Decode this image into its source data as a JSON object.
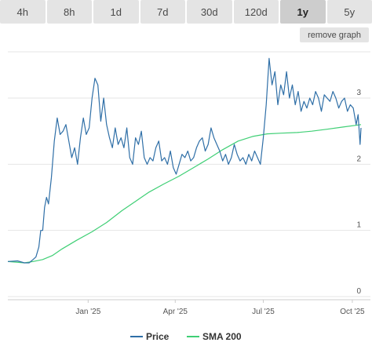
{
  "tabs": [
    {
      "label": "4h",
      "active": false
    },
    {
      "label": "8h",
      "active": false
    },
    {
      "label": "1d",
      "active": false
    },
    {
      "label": "7d",
      "active": false
    },
    {
      "label": "30d",
      "active": false
    },
    {
      "label": "120d",
      "active": false
    },
    {
      "label": "1y",
      "active": true
    },
    {
      "label": "5y",
      "active": false
    }
  ],
  "remove_graph_label": "remove graph",
  "colors": {
    "price": "#2f6fa7",
    "sma": "#3fcf75",
    "grid": "#e6e6e6",
    "axis": "#cccccc"
  },
  "chart_data": {
    "type": "line",
    "x_ticks": [
      "Jan '25",
      "Apr '25",
      "Jul '25",
      "Oct '25"
    ],
    "y_ticks": [
      "0",
      "1",
      "2",
      "3"
    ],
    "ylim": [
      0,
      3.7
    ],
    "xlim": [
      "2024-10-10",
      "2025-10-10"
    ],
    "grid": true,
    "legend_position": "bottom",
    "series": [
      {
        "name": "Price",
        "color": "#2f6fa7",
        "x": [
          "2024-10-10",
          "2024-10-20",
          "2024-10-27",
          "2024-11-01",
          "2024-11-05",
          "2024-11-08",
          "2024-11-11",
          "2024-11-13",
          "2024-11-15",
          "2024-11-17",
          "2024-11-19",
          "2024-11-21",
          "2024-11-24",
          "2024-11-27",
          "2024-11-30",
          "2024-12-03",
          "2024-12-06",
          "2024-12-09",
          "2024-12-12",
          "2024-12-15",
          "2024-12-18",
          "2024-12-21",
          "2024-12-24",
          "2024-12-27",
          "2024-12-30",
          "2025-01-02",
          "2025-01-05",
          "2025-01-08",
          "2025-01-11",
          "2025-01-14",
          "2025-01-17",
          "2025-01-20",
          "2025-01-23",
          "2025-01-26",
          "2025-01-29",
          "2025-02-01",
          "2025-02-04",
          "2025-02-07",
          "2025-02-10",
          "2025-02-13",
          "2025-02-16",
          "2025-02-19",
          "2025-02-22",
          "2025-02-25",
          "2025-02-28",
          "2025-03-03",
          "2025-03-06",
          "2025-03-09",
          "2025-03-12",
          "2025-03-15",
          "2025-03-18",
          "2025-03-21",
          "2025-03-24",
          "2025-03-27",
          "2025-03-30",
          "2025-04-02",
          "2025-04-05",
          "2025-04-08",
          "2025-04-11",
          "2025-04-14",
          "2025-04-17",
          "2025-04-20",
          "2025-04-23",
          "2025-04-26",
          "2025-04-29",
          "2025-05-02",
          "2025-05-05",
          "2025-05-08",
          "2025-05-11",
          "2025-05-14",
          "2025-05-17",
          "2025-05-20",
          "2025-05-23",
          "2025-05-26",
          "2025-05-29",
          "2025-06-01",
          "2025-06-04",
          "2025-06-07",
          "2025-06-10",
          "2025-06-13",
          "2025-06-16",
          "2025-06-19",
          "2025-06-22",
          "2025-06-25",
          "2025-06-28",
          "2025-07-01",
          "2025-07-04",
          "2025-07-07",
          "2025-07-10",
          "2025-07-13",
          "2025-07-16",
          "2025-07-19",
          "2025-07-22",
          "2025-07-25",
          "2025-07-28",
          "2025-07-31",
          "2025-08-03",
          "2025-08-06",
          "2025-08-09",
          "2025-08-12",
          "2025-08-15",
          "2025-08-18",
          "2025-08-21",
          "2025-08-24",
          "2025-08-27",
          "2025-08-30",
          "2025-09-02",
          "2025-09-05",
          "2025-09-08",
          "2025-09-11",
          "2025-09-14",
          "2025-09-17",
          "2025-09-20",
          "2025-09-23",
          "2025-09-26",
          "2025-09-29",
          "2025-10-02",
          "2025-10-05",
          "2025-10-07",
          "2025-10-09",
          "2025-10-10"
        ],
        "y": [
          0.53,
          0.54,
          0.51,
          0.51,
          0.56,
          0.6,
          0.75,
          1.0,
          1.0,
          1.35,
          1.5,
          1.4,
          1.8,
          2.35,
          2.7,
          2.45,
          2.5,
          2.6,
          2.35,
          2.1,
          2.25,
          2.0,
          2.4,
          2.7,
          2.45,
          2.55,
          3.0,
          3.3,
          3.2,
          2.65,
          3.0,
          2.6,
          2.4,
          2.25,
          2.55,
          2.3,
          2.4,
          2.25,
          2.55,
          2.1,
          2.0,
          2.4,
          2.3,
          2.5,
          2.1,
          2.0,
          2.1,
          2.05,
          2.25,
          2.35,
          2.05,
          2.1,
          2.0,
          2.2,
          1.95,
          1.85,
          2.0,
          2.15,
          2.1,
          2.2,
          2.05,
          2.1,
          2.25,
          2.35,
          2.4,
          2.2,
          2.3,
          2.55,
          2.4,
          2.3,
          2.2,
          2.05,
          2.15,
          2.0,
          2.1,
          2.3,
          2.15,
          2.05,
          2.1,
          2.0,
          2.15,
          2.05,
          2.2,
          2.1,
          2.0,
          2.4,
          2.9,
          3.6,
          3.2,
          3.4,
          2.9,
          3.2,
          3.05,
          3.4,
          3.0,
          3.2,
          2.9,
          3.1,
          2.8,
          2.95,
          2.85,
          3.0,
          2.9,
          3.1,
          3.0,
          2.8,
          3.05,
          3.0,
          2.95,
          3.1,
          3.0,
          2.85,
          2.95,
          3.0,
          2.8,
          2.9,
          2.85,
          2.6,
          2.75,
          2.3,
          2.55
        ]
      },
      {
        "name": "SMA 200",
        "color": "#3fcf75",
        "x": [
          "2024-10-10",
          "2024-10-27",
          "2024-11-05",
          "2024-11-15",
          "2024-11-25",
          "2024-12-05",
          "2024-12-20",
          "2025-01-05",
          "2025-01-20",
          "2025-02-05",
          "2025-02-20",
          "2025-03-05",
          "2025-03-20",
          "2025-04-05",
          "2025-04-20",
          "2025-05-05",
          "2025-05-20",
          "2025-06-05",
          "2025-06-20",
          "2025-07-05",
          "2025-07-20",
          "2025-08-05",
          "2025-08-20",
          "2025-09-05",
          "2025-09-20",
          "2025-10-10"
        ],
        "y": [
          0.53,
          0.51,
          0.53,
          0.56,
          0.62,
          0.72,
          0.85,
          0.98,
          1.12,
          1.3,
          1.45,
          1.58,
          1.7,
          1.82,
          1.95,
          2.08,
          2.22,
          2.35,
          2.42,
          2.46,
          2.47,
          2.48,
          2.5,
          2.53,
          2.56,
          2.6
        ]
      }
    ]
  }
}
